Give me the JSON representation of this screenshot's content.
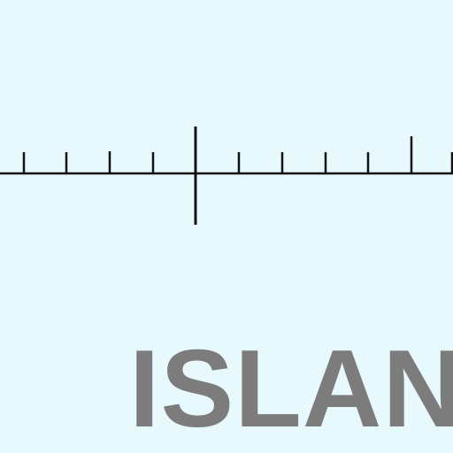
{
  "map": {
    "place_label": "ISLAND",
    "label_color": "#7c7c7c",
    "background_color": "#e8f9fd",
    "scale_bar": {
      "color": "#111111",
      "minor_tick_count": 11,
      "major_tick_count": 1
    }
  }
}
